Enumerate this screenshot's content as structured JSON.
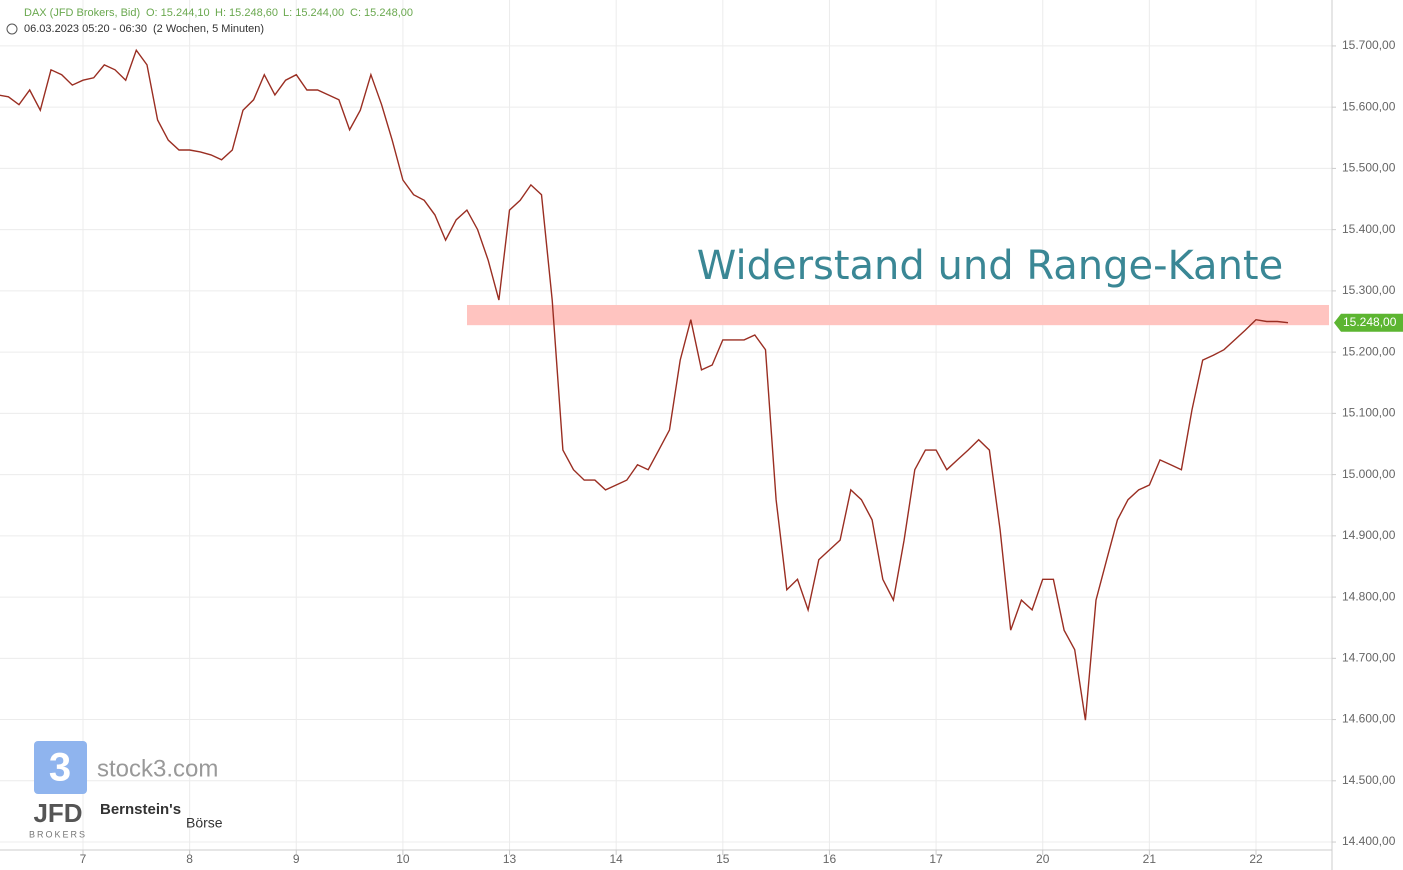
{
  "chart_data": {
    "type": "line",
    "header": {
      "instrument": "DAX (JFD Brokers, Bid)",
      "open": "O: 15.244,10",
      "high": "H: 15.248,60",
      "low": "L: 15.244,00",
      "close": "C: 15.248,00",
      "range": "06.03.2023 05:20 - 06:30",
      "period": "(2 Wochen, 5 Minuten)"
    },
    "annotation": "Widerstand und Range-Kante",
    "resistance_zone": [
      15244,
      15277
    ],
    "last_price": {
      "value": 15248,
      "label": "15.248,00"
    },
    "color": "#9a2e22",
    "zone_color": "#ffc4c0",
    "categories": [
      null,
      null,
      null,
      null,
      null,
      null,
      null,
      null,
      "7",
      null,
      null,
      null,
      null,
      null,
      null,
      null,
      null,
      null,
      "8",
      null,
      null,
      null,
      null,
      null,
      null,
      null,
      null,
      null,
      "9",
      null,
      null,
      null,
      null,
      null,
      null,
      null,
      null,
      null,
      "10",
      null,
      null,
      null,
      null,
      null,
      null,
      null,
      null,
      null,
      "13",
      null,
      null,
      null,
      null,
      null,
      null,
      null,
      null,
      null,
      "14",
      null,
      null,
      null,
      null,
      null,
      null,
      null,
      null,
      null,
      "15",
      null,
      null,
      null,
      null,
      null,
      null,
      null,
      null,
      null,
      "16",
      null,
      null,
      null,
      null,
      null,
      null,
      null,
      null,
      null,
      "17",
      null,
      null,
      null,
      null,
      null,
      null,
      null,
      null,
      null,
      "20",
      null,
      null,
      null,
      null,
      null,
      null,
      null,
      null,
      null,
      "21",
      null,
      null,
      null,
      null,
      null,
      null,
      null,
      null,
      null,
      "22",
      null,
      null,
      null
    ],
    "values": [
      15620,
      15617,
      15604,
      15628,
      15595,
      15661,
      15653,
      15636,
      15644,
      15648,
      15669,
      15661,
      15644,
      15693,
      15669,
      15579,
      15546,
      15530,
      15530,
      15527,
      15522,
      15514,
      15530,
      15595,
      15612,
      15653,
      15620,
      15644,
      15653,
      15628,
      15628,
      15620,
      15612,
      15563,
      15595,
      15653,
      15604,
      15546,
      15481,
      15457,
      15448,
      15424,
      15383,
      15416,
      15432,
      15400,
      15350,
      15285,
      15432,
      15448,
      15473,
      15457,
      15285,
      15040,
      15008,
      14991,
      14991,
      14975,
      14983,
      14991,
      15016,
      15008,
      15040,
      15073,
      15187,
      15253,
      15171,
      15179,
      15220,
      15220,
      15220,
      15228,
      15204,
      14959,
      14812,
      14829,
      14779,
      14861,
      14877,
      14893,
      14975,
      14959,
      14926,
      14829,
      14795,
      14893,
      15008,
      15040,
      15040,
      15008,
      15024,
      15040,
      15057,
      15040,
      14910,
      14746,
      14795,
      14779,
      14829,
      14829,
      14746,
      14714,
      14599,
      14795,
      14861,
      14926,
      14959,
      14975,
      14983,
      15024,
      15016,
      15008,
      15106,
      15187,
      15195,
      15204,
      15220,
      15236,
      15253,
      15250,
      15250,
      15248
    ],
    "ylim": [
      14387,
      15775
    ],
    "yticks": [
      {
        "value": 14400,
        "label": "14.400,00"
      },
      {
        "value": 14500,
        "label": "14.500,00"
      },
      {
        "value": 14600,
        "label": "14.600,00"
      },
      {
        "value": 14700,
        "label": "14.700,00"
      },
      {
        "value": 14800,
        "label": "14.800,00"
      },
      {
        "value": 14900,
        "label": "14.900,00"
      },
      {
        "value": 15000,
        "label": "15.000,00"
      },
      {
        "value": 15100,
        "label": "15.100,00"
      },
      {
        "value": 15200,
        "label": "15.200,00"
      },
      {
        "value": 15300,
        "label": "15.300,00"
      },
      {
        "value": 15400,
        "label": "15.400,00"
      },
      {
        "value": 15500,
        "label": "15.500,00"
      },
      {
        "value": 15600,
        "label": "15.600,00"
      },
      {
        "value": 15700,
        "label": "15.700,00"
      }
    ],
    "grid": true,
    "logos": {
      "mark": "3",
      "site": "stock3.com",
      "broker": "JFD",
      "broker_sub": "BROKERS",
      "partner": "Bernstein's",
      "partner_sub": "Börse"
    }
  }
}
